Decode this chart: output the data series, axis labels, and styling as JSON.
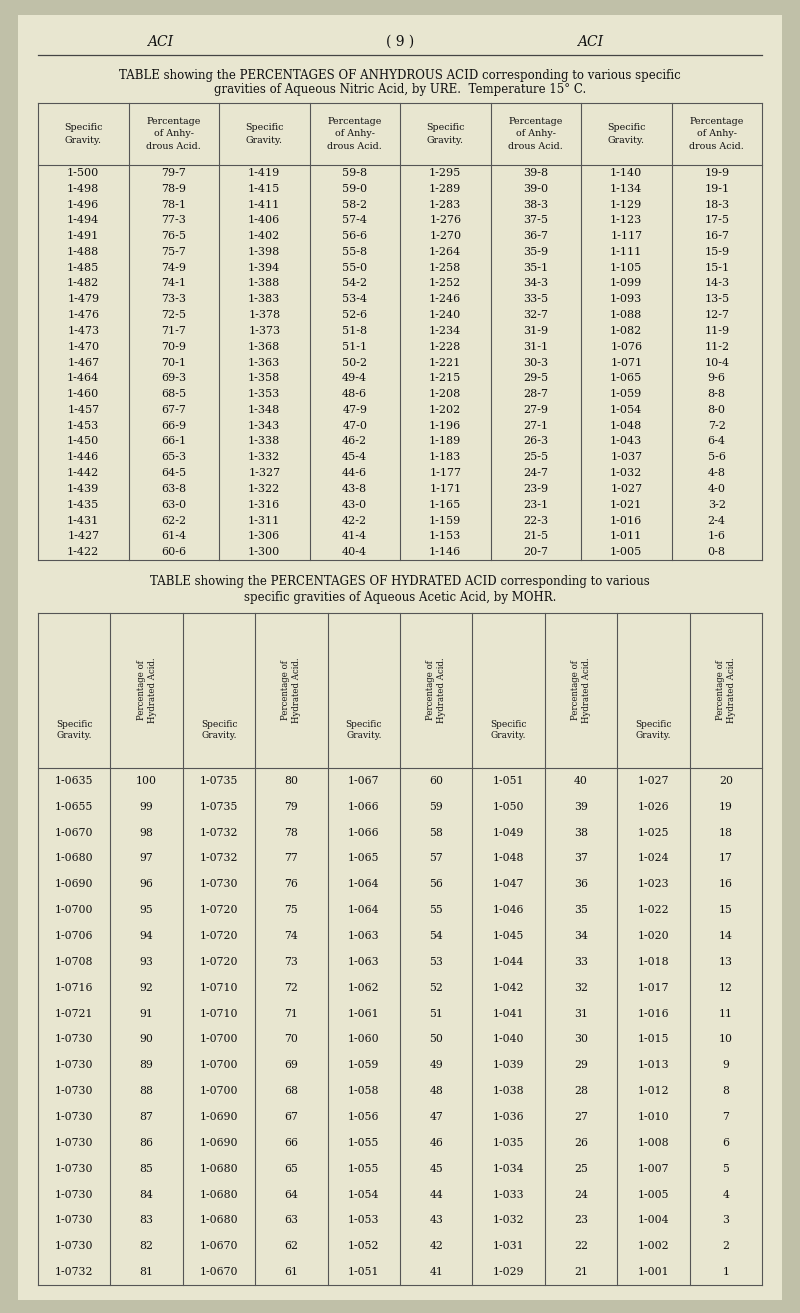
{
  "bg_color": "#e8e8d0",
  "outer_bg": "#c8c8b0",
  "table1_data": [
    [
      "1-500",
      "79-7",
      "1-419",
      "59-8",
      "1-295",
      "39-8",
      "1-140",
      "19-9"
    ],
    [
      "1-498",
      "78-9",
      "1-415",
      "59-0",
      "1-289",
      "39-0",
      "1-134",
      "19-1"
    ],
    [
      "1-496",
      "78-1",
      "1-411",
      "58-2",
      "1-283",
      "38-3",
      "1-129",
      "18-3"
    ],
    [
      "1-494",
      "77-3",
      "1-406",
      "57-4",
      "1-276",
      "37-5",
      "1-123",
      "17-5"
    ],
    [
      "1-491",
      "76-5",
      "1-402",
      "56-6",
      "1-270",
      "36-7",
      "1-117",
      "16-7"
    ],
    [
      "1-488",
      "75-7",
      "1-398",
      "55-8",
      "1-264",
      "35-9",
      "1-111",
      "15-9"
    ],
    [
      "1-485",
      "74-9",
      "1-394",
      "55-0",
      "1-258",
      "35-1",
      "1-105",
      "15-1"
    ],
    [
      "1-482",
      "74-1",
      "1-388",
      "54-2",
      "1-252",
      "34-3",
      "1-099",
      "14-3"
    ],
    [
      "1-479",
      "73-3",
      "1-383",
      "53-4",
      "1-246",
      "33-5",
      "1-093",
      "13-5"
    ],
    [
      "1-476",
      "72-5",
      "1-378",
      "52-6",
      "1-240",
      "32-7",
      "1-088",
      "12-7"
    ],
    [
      "1-473",
      "71-7",
      "1-373",
      "51-8",
      "1-234",
      "31-9",
      "1-082",
      "11-9"
    ],
    [
      "1-470",
      "70-9",
      "1-368",
      "51-1",
      "1-228",
      "31-1",
      "1-076",
      "11-2"
    ],
    [
      "1-467",
      "70-1",
      "1-363",
      "50-2",
      "1-221",
      "30-3",
      "1-071",
      "10-4"
    ],
    [
      "1-464",
      "69-3",
      "1-358",
      "49-4",
      "1-215",
      "29-5",
      "1-065",
      "9-6"
    ],
    [
      "1-460",
      "68-5",
      "1-353",
      "48-6",
      "1-208",
      "28-7",
      "1-059",
      "8-8"
    ],
    [
      "1-457",
      "67-7",
      "1-348",
      "47-9",
      "1-202",
      "27-9",
      "1-054",
      "8-0"
    ],
    [
      "1-453",
      "66-9",
      "1-343",
      "47-0",
      "1-196",
      "27-1",
      "1-048",
      "7-2"
    ],
    [
      "1-450",
      "66-1",
      "1-338",
      "46-2",
      "1-189",
      "26-3",
      "1-043",
      "6-4"
    ],
    [
      "1-446",
      "65-3",
      "1-332",
      "45-4",
      "1-183",
      "25-5",
      "1-037",
      "5-6"
    ],
    [
      "1-442",
      "64-5",
      "1-327",
      "44-6",
      "1-177",
      "24-7",
      "1-032",
      "4-8"
    ],
    [
      "1-439",
      "63-8",
      "1-322",
      "43-8",
      "1-171",
      "23-9",
      "1-027",
      "4-0"
    ],
    [
      "1-435",
      "63-0",
      "1-316",
      "43-0",
      "1-165",
      "23-1",
      "1-021",
      "3-2"
    ],
    [
      "1-431",
      "62-2",
      "1-311",
      "42-2",
      "1-159",
      "22-3",
      "1-016",
      "2-4"
    ],
    [
      "1-427",
      "61-4",
      "1-306",
      "41-4",
      "1-153",
      "21-5",
      "1-011",
      "1-6"
    ],
    [
      "1-422",
      "60-6",
      "1-300",
      "40-4",
      "1-146",
      "20-7",
      "1-005",
      "0-8"
    ]
  ],
  "table2_data": [
    [
      "1-0635",
      "100",
      "1-0735",
      "80",
      "1-067",
      "60",
      "1-051",
      "40",
      "1-027",
      "20"
    ],
    [
      "1-0655",
      "99",
      "1-0735",
      "79",
      "1-066",
      "59",
      "1-050",
      "39",
      "1-026",
      "19"
    ],
    [
      "1-0670",
      "98",
      "1-0732",
      "78",
      "1-066",
      "58",
      "1-049",
      "38",
      "1-025",
      "18"
    ],
    [
      "1-0680",
      "97",
      "1-0732",
      "77",
      "1-065",
      "57",
      "1-048",
      "37",
      "1-024",
      "17"
    ],
    [
      "1-0690",
      "96",
      "1-0730",
      "76",
      "1-064",
      "56",
      "1-047",
      "36",
      "1-023",
      "16"
    ],
    [
      "1-0700",
      "95",
      "1-0720",
      "75",
      "1-064",
      "55",
      "1-046",
      "35",
      "1-022",
      "15"
    ],
    [
      "1-0706",
      "94",
      "1-0720",
      "74",
      "1-063",
      "54",
      "1-045",
      "34",
      "1-020",
      "14"
    ],
    [
      "1-0708",
      "93",
      "1-0720",
      "73",
      "1-063",
      "53",
      "1-044",
      "33",
      "1-018",
      "13"
    ],
    [
      "1-0716",
      "92",
      "1-0710",
      "72",
      "1-062",
      "52",
      "1-042",
      "32",
      "1-017",
      "12"
    ],
    [
      "1-0721",
      "91",
      "1-0710",
      "71",
      "1-061",
      "51",
      "1-041",
      "31",
      "1-016",
      "11"
    ],
    [
      "1-0730",
      "90",
      "1-0700",
      "70",
      "1-060",
      "50",
      "1-040",
      "30",
      "1-015",
      "10"
    ],
    [
      "1-0730",
      "89",
      "1-0700",
      "69",
      "1-059",
      "49",
      "1-039",
      "29",
      "1-013",
      "9"
    ],
    [
      "1-0730",
      "88",
      "1-0700",
      "68",
      "1-058",
      "48",
      "1-038",
      "28",
      "1-012",
      "8"
    ],
    [
      "1-0730",
      "87",
      "1-0690",
      "67",
      "1-056",
      "47",
      "1-036",
      "27",
      "1-010",
      "7"
    ],
    [
      "1-0730",
      "86",
      "1-0690",
      "66",
      "1-055",
      "46",
      "1-035",
      "26",
      "1-008",
      "6"
    ],
    [
      "1-0730",
      "85",
      "1-0680",
      "65",
      "1-055",
      "45",
      "1-034",
      "25",
      "1-007",
      "5"
    ],
    [
      "1-0730",
      "84",
      "1-0680",
      "64",
      "1-054",
      "44",
      "1-033",
      "24",
      "1-005",
      "4"
    ],
    [
      "1-0730",
      "83",
      "1-0680",
      "63",
      "1-053",
      "43",
      "1-032",
      "23",
      "1-004",
      "3"
    ],
    [
      "1-0730",
      "82",
      "1-0670",
      "62",
      "1-052",
      "42",
      "1-031",
      "22",
      "1-002",
      "2"
    ],
    [
      "1-0732",
      "81",
      "1-0670",
      "61",
      "1-051",
      "41",
      "1-029",
      "21",
      "1-001",
      "1"
    ]
  ]
}
